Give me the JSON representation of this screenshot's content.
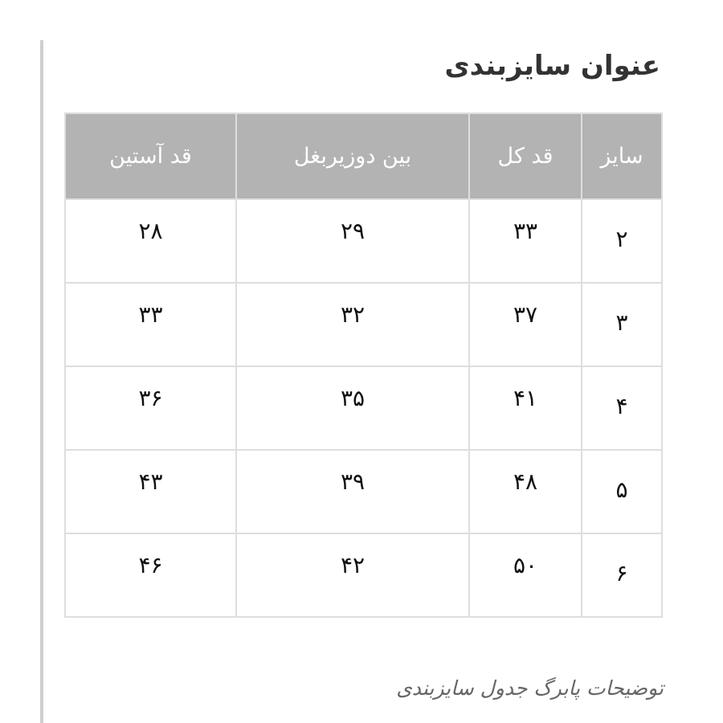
{
  "title": "عنوان سایزبندی",
  "table": {
    "headers": [
      "سایز",
      "قد کل",
      "بین دوزیربغل",
      "قد آستین"
    ],
    "rows": [
      [
        "۲",
        "۳۳",
        "۲۹",
        "۲۸"
      ],
      [
        "۳",
        "۳۷",
        "۳۲",
        "۳۳"
      ],
      [
        "۴",
        "۴۱",
        "۳۵",
        "۳۶"
      ],
      [
        "۵",
        "۴۸",
        "۳۹",
        "۴۳"
      ],
      [
        "۶",
        "۵۰",
        "۴۲",
        "۴۶"
      ]
    ]
  },
  "footer": "توضیحات پابرگ جدول سایزبندی",
  "colors": {
    "header_bg": "#b3b3b3",
    "border": "#dedede"
  }
}
